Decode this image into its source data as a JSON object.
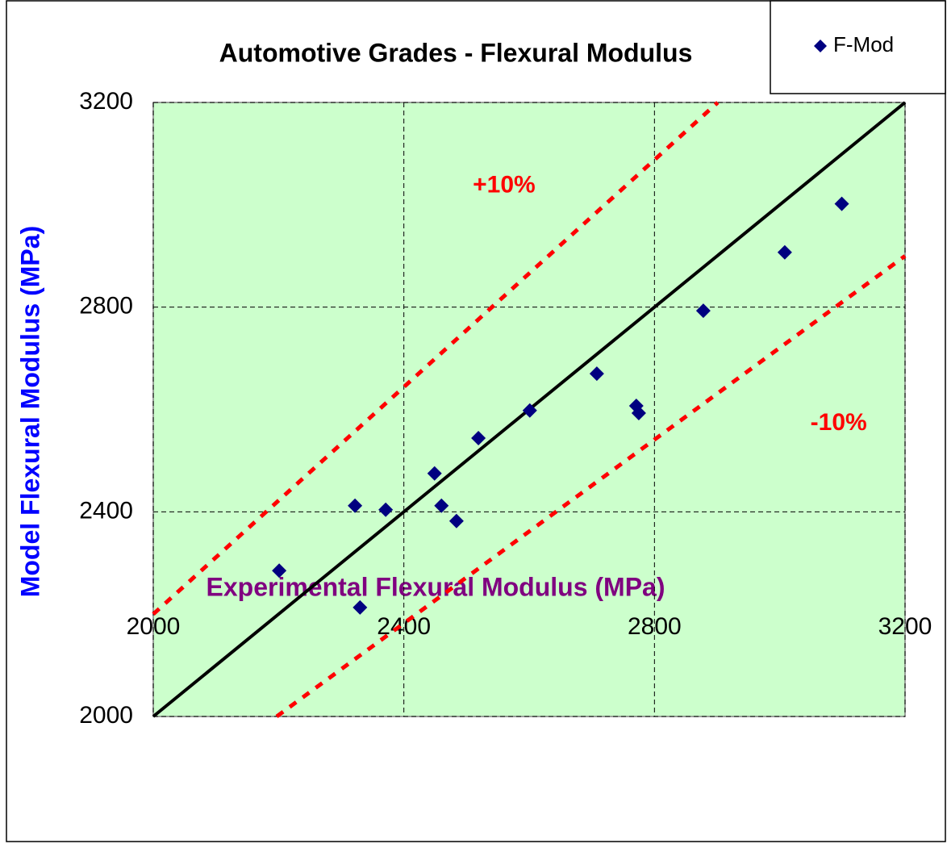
{
  "chart_data": {
    "type": "scatter",
    "title": "Automotive Grades - Flexural Modulus",
    "x_label": "Experimental Flexural Modulus (MPa)",
    "y_label": "Model Flexural Modulus (MPa)",
    "xlim": [
      2000,
      3200
    ],
    "ylim": [
      2000,
      3200
    ],
    "xticks": [
      2000,
      2400,
      2800,
      3200
    ],
    "yticks": [
      2000,
      2400,
      2800,
      3200
    ],
    "grid": true,
    "legend": "top-right",
    "background": "#ccffcc",
    "series": [
      {
        "name": "F-Mod",
        "color": "#000080",
        "x": [
          2201,
          2322,
          2330,
          2371,
          2449,
          2460,
          2484,
          2519,
          2601,
          2708,
          2771,
          2775,
          2878,
          3008,
          3099
        ],
        "values": [
          2285,
          2412,
          2213,
          2404,
          2475,
          2412,
          2382,
          2544,
          2598,
          2670,
          2607,
          2593,
          2793,
          2907,
          3002
        ]
      }
    ],
    "lines": [
      {
        "x": [
          2000,
          3200
        ],
        "values": [
          2000,
          3200
        ],
        "color": "#000000",
        "dashed": false
      },
      {
        "x": [
          2000,
          2901
        ],
        "values": [
          2200,
          3200
        ],
        "color": "#ff0000",
        "dashed": true
      },
      {
        "x": [
          2197,
          3200
        ],
        "values": [
          2000,
          2900
        ],
        "color": "#ff0000",
        "dashed": true
      }
    ],
    "annotations": [
      {
        "text": "+10%",
        "x": 2560,
        "y": 3037,
        "color": "#ff0000"
      },
      {
        "text": "-10%",
        "x": 3094,
        "y": 2572,
        "color": "#ff0000"
      }
    ]
  }
}
